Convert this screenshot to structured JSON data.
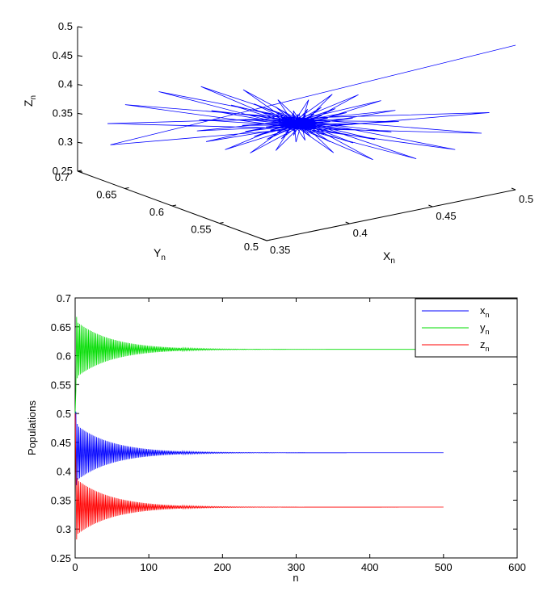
{
  "chart_data": [
    {
      "type": "line",
      "subtype": "3d-phase-trajectory",
      "title": "",
      "xlabel": "X",
      "xlabel_sub": "n",
      "ylabel": "Y",
      "ylabel_sub": "n",
      "zlabel": "Z",
      "zlabel_sub": "n",
      "xlim": [
        0.35,
        0.5
      ],
      "ylim": [
        0.5,
        0.7
      ],
      "zlim": [
        0.25,
        0.5
      ],
      "x_ticks": [
        "0.35",
        "0.4",
        "0.45",
        "0.5"
      ],
      "y_ticks": [
        "0.5",
        "0.55",
        "0.6",
        "0.65",
        "0.7"
      ],
      "z_ticks": [
        "0.25",
        "0.3",
        "0.35",
        "0.4",
        "0.45",
        "0.5"
      ],
      "line_color": "#0000ff",
      "equilibrium": {
        "x": 0.432,
        "y": 0.611,
        "z": 0.338
      },
      "initial_point": {
        "x": 0.5,
        "y": 0.5,
        "z": 0.5
      },
      "grid": false
    },
    {
      "type": "line",
      "title": "",
      "xlabel": "n",
      "ylabel": "Populations",
      "xlim": [
        0,
        600
      ],
      "ylim": [
        0.25,
        0.7
      ],
      "x_ticks": [
        "0",
        "100",
        "200",
        "300",
        "400",
        "500",
        "600"
      ],
      "y_ticks": [
        "0.25",
        "0.3",
        "0.35",
        "0.4",
        "0.45",
        "0.5",
        "0.55",
        "0.6",
        "0.65",
        "0.7"
      ],
      "n_range": [
        0,
        500
      ],
      "legend_position": "top-right",
      "grid": false,
      "series": [
        {
          "name": "x",
          "sub": "n",
          "color": "#0000ff",
          "equilibrium": 0.432,
          "initial_amplitude": 0.05,
          "start": 0.5
        },
        {
          "name": "y",
          "sub": "n",
          "color": "#00dd00",
          "equilibrium": 0.611,
          "initial_amplitude": 0.05,
          "start": 0.5
        },
        {
          "name": "z",
          "sub": "n",
          "color": "#ff0000",
          "equilibrium": 0.338,
          "initial_amplitude": 0.05,
          "start": 0.5
        }
      ]
    }
  ]
}
